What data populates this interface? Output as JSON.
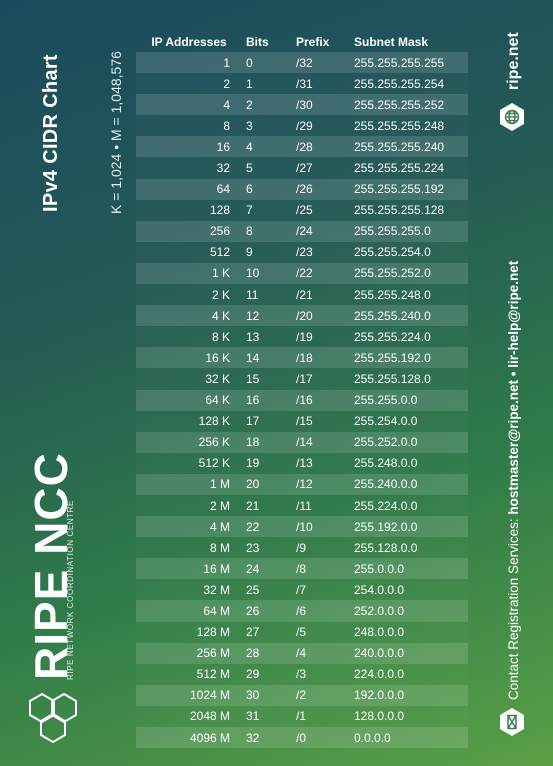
{
  "title": "IPv4 CIDR Chart",
  "subtitle": "K = 1,024 • M = 1,048,576",
  "logo": {
    "name": "RIPE NCC",
    "tagline": "RIPE NETWORK COORDINATION CENTRE"
  },
  "website": "ripe.net",
  "contact": {
    "prefix": "Contact Registration Services: ",
    "emails": "hostmaster@ripe.net • lir-help@ripe.net"
  },
  "icons": {
    "website": "globe-icon",
    "contact": "mail-icon",
    "logo": "ripe-hex-logo"
  },
  "table": {
    "headers": [
      "IP Addresses",
      "Bits",
      "Prefix",
      "Subnet Mask"
    ],
    "rows": [
      [
        "1",
        "0",
        "/32",
        "255.255.255.255"
      ],
      [
        "2",
        "1",
        "/31",
        "255.255.255.254"
      ],
      [
        "4",
        "2",
        "/30",
        "255.255.255.252"
      ],
      [
        "8",
        "3",
        "/29",
        "255.255.255.248"
      ],
      [
        "16",
        "4",
        "/28",
        "255.255.255.240"
      ],
      [
        "32",
        "5",
        "/27",
        "255.255.255.224"
      ],
      [
        "64",
        "6",
        "/26",
        "255.255.255.192"
      ],
      [
        "128",
        "7",
        "/25",
        "255.255.255.128"
      ],
      [
        "256",
        "8",
        "/24",
        "255.255.255.0"
      ],
      [
        "512",
        "9",
        "/23",
        "255.255.254.0"
      ],
      [
        "1 K",
        "10",
        "/22",
        "255.255.252.0"
      ],
      [
        "2 K",
        "11",
        "/21",
        "255.255.248.0"
      ],
      [
        "4 K",
        "12",
        "/20",
        "255.255.240.0"
      ],
      [
        "8 K",
        "13",
        "/19",
        "255.255.224.0"
      ],
      [
        "16 K",
        "14",
        "/18",
        "255.255.192.0"
      ],
      [
        "32 K",
        "15",
        "/17",
        "255.255.128.0"
      ],
      [
        "64 K",
        "16",
        "/16",
        "255.255.0.0"
      ],
      [
        "128 K",
        "17",
        "/15",
        "255.254.0.0"
      ],
      [
        "256 K",
        "18",
        "/14",
        "255.252.0.0"
      ],
      [
        "512 K",
        "19",
        "/13",
        "255.248.0.0"
      ],
      [
        "1 M",
        "20",
        "/12",
        "255.240.0.0"
      ],
      [
        "2 M",
        "21",
        "/11",
        "255.224.0.0"
      ],
      [
        "4 M",
        "22",
        "/10",
        "255.192.0.0"
      ],
      [
        "8 M",
        "23",
        "/9",
        "255.128.0.0"
      ],
      [
        "16 M",
        "24",
        "/8",
        "255.0.0.0"
      ],
      [
        "32 M",
        "25",
        "/7",
        "254.0.0.0"
      ],
      [
        "64 M",
        "26",
        "/6",
        "252.0.0.0"
      ],
      [
        "128 M",
        "27",
        "/5",
        "248.0.0.0"
      ],
      [
        "256 M",
        "28",
        "/4",
        "240.0.0.0"
      ],
      [
        "512 M",
        "29",
        "/3",
        "224.0.0.0"
      ],
      [
        "1024 M",
        "30",
        "/2",
        "192.0.0.0"
      ],
      [
        "2048 M",
        "31",
        "/1",
        "128.0.0.0"
      ],
      [
        "4096 M",
        "32",
        "/0",
        "0.0.0.0"
      ]
    ]
  },
  "colors": {
    "text": "#ffffff",
    "badge": "#ffffff",
    "badge_icon": "#3a7a52"
  }
}
